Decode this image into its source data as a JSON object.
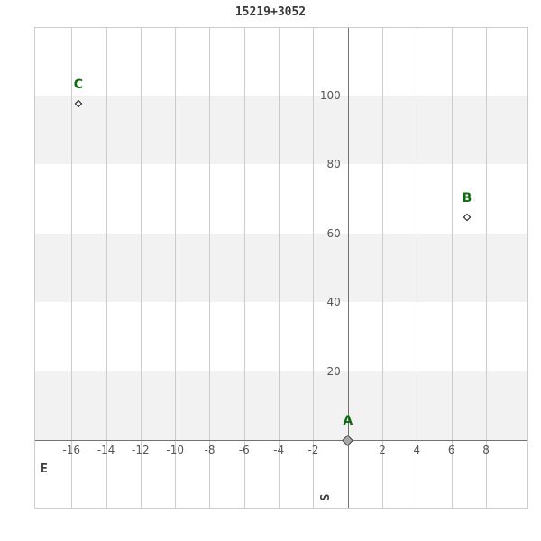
{
  "chart_data": {
    "type": "scatter",
    "title": "15219+3052",
    "xlabel": "E",
    "ylabel": "S",
    "xlim": [
      -18.1,
      10.4
    ],
    "ylim": [
      -19.5,
      119.6
    ],
    "x_ticks": [
      -16,
      -14,
      -12,
      -10,
      -8,
      -6,
      -4,
      -2,
      2,
      4,
      6,
      8
    ],
    "y_ticks": [
      20,
      40,
      60,
      80,
      100
    ],
    "x_axis_line_at_y": 0,
    "y_axis_line_at_x": 0,
    "shaded_bands_y": [
      [
        0,
        20
      ],
      [
        40,
        60
      ],
      [
        80,
        100
      ]
    ],
    "grid": "vertical gridlines every 2 units; horizontal alternating shaded bands every 20 units",
    "legend_position": "none",
    "points": [
      {
        "label": "A",
        "x": 0,
        "y": 0,
        "marker": "filled-diamond"
      },
      {
        "label": "B",
        "x": 6.9,
        "y": 64.7,
        "marker": "open-diamond"
      },
      {
        "label": "C",
        "x": -15.6,
        "y": 97.6,
        "marker": "open-diamond"
      }
    ]
  },
  "colors": {
    "background": "#ffffff",
    "band": "#f2f2f2",
    "gridline": "#cccccc",
    "plot_border": "#cccccc",
    "axis_line": "#737373",
    "tick_label": "#555555",
    "title_text": "#383838",
    "axis_label_text": "#3d3d3d",
    "point_label": "#0e6b0e",
    "marker_stroke": "#111111",
    "origin_marker_fill": "#a8a8a8",
    "origin_marker_border": "#444444"
  }
}
